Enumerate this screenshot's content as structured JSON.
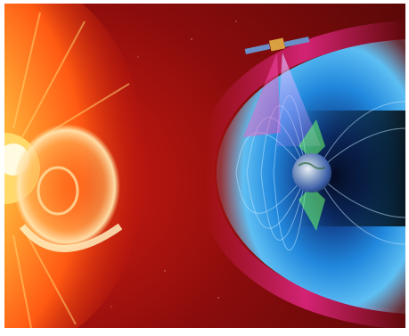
{
  "image": {
    "subject": "sun-earth-space-weather-illustration",
    "elements": [
      "sun",
      "coronal-mass-ejection",
      "magnetosphere",
      "earth",
      "satellite",
      "aurora-beams",
      "sensor-cones"
    ]
  },
  "colors": {
    "frame": "#ffffff",
    "space_red": "#7a0c0c",
    "sun_core": "#fff2a0",
    "sun_orange": "#ff7a1a",
    "magnetosphere_blue": "#2aa7ff",
    "magnetosheath_pink": "#ff2fa6",
    "sensor_cone": "#c9a0ff",
    "aurora_green": "#6dff6d",
    "earth_blue": "#3b5ea8"
  }
}
